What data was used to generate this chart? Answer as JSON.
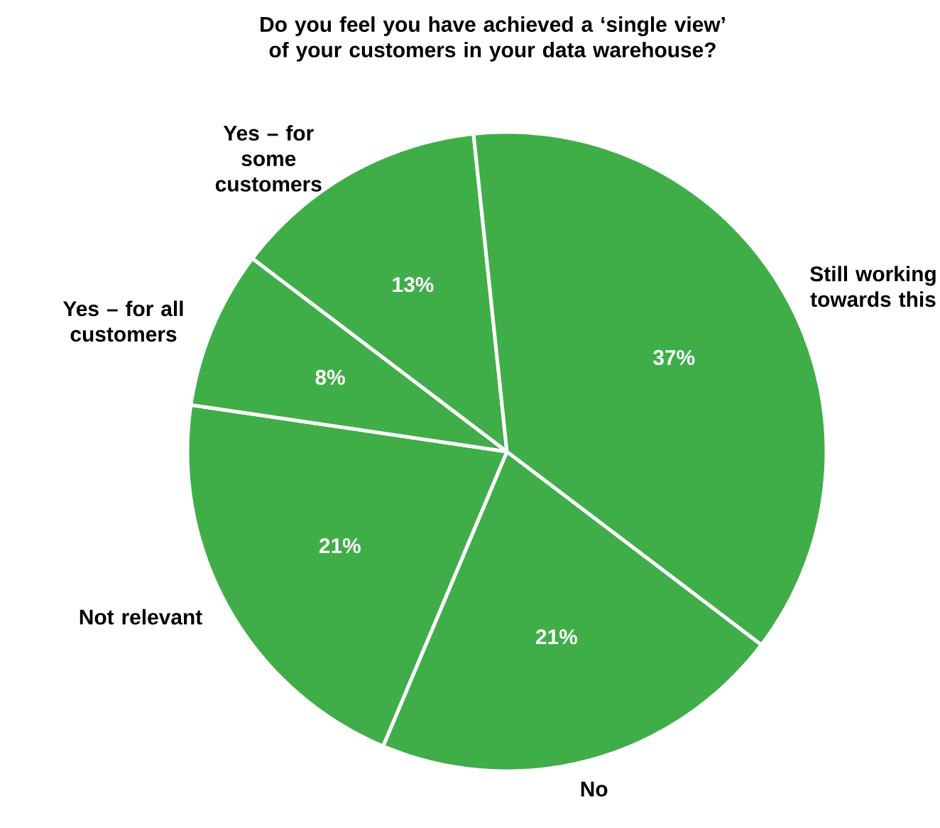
{
  "chart_data": {
    "type": "pie",
    "title": "Do you feel you have achieved a ‘single view’ of your customers in your data warehouse?",
    "categories": [
      "Still working towards this",
      "Yes – for some customers",
      "Yes – for all customers",
      "Not relevant",
      "No"
    ],
    "values": [
      37,
      13,
      8,
      21,
      21
    ],
    "value_labels": [
      "37%",
      "13%",
      "8%",
      "21%",
      "21%"
    ],
    "colors": [
      "#3fae49",
      "#3fae49",
      "#3fae49",
      "#3fae49",
      "#3fae49"
    ],
    "legend": false
  }
}
